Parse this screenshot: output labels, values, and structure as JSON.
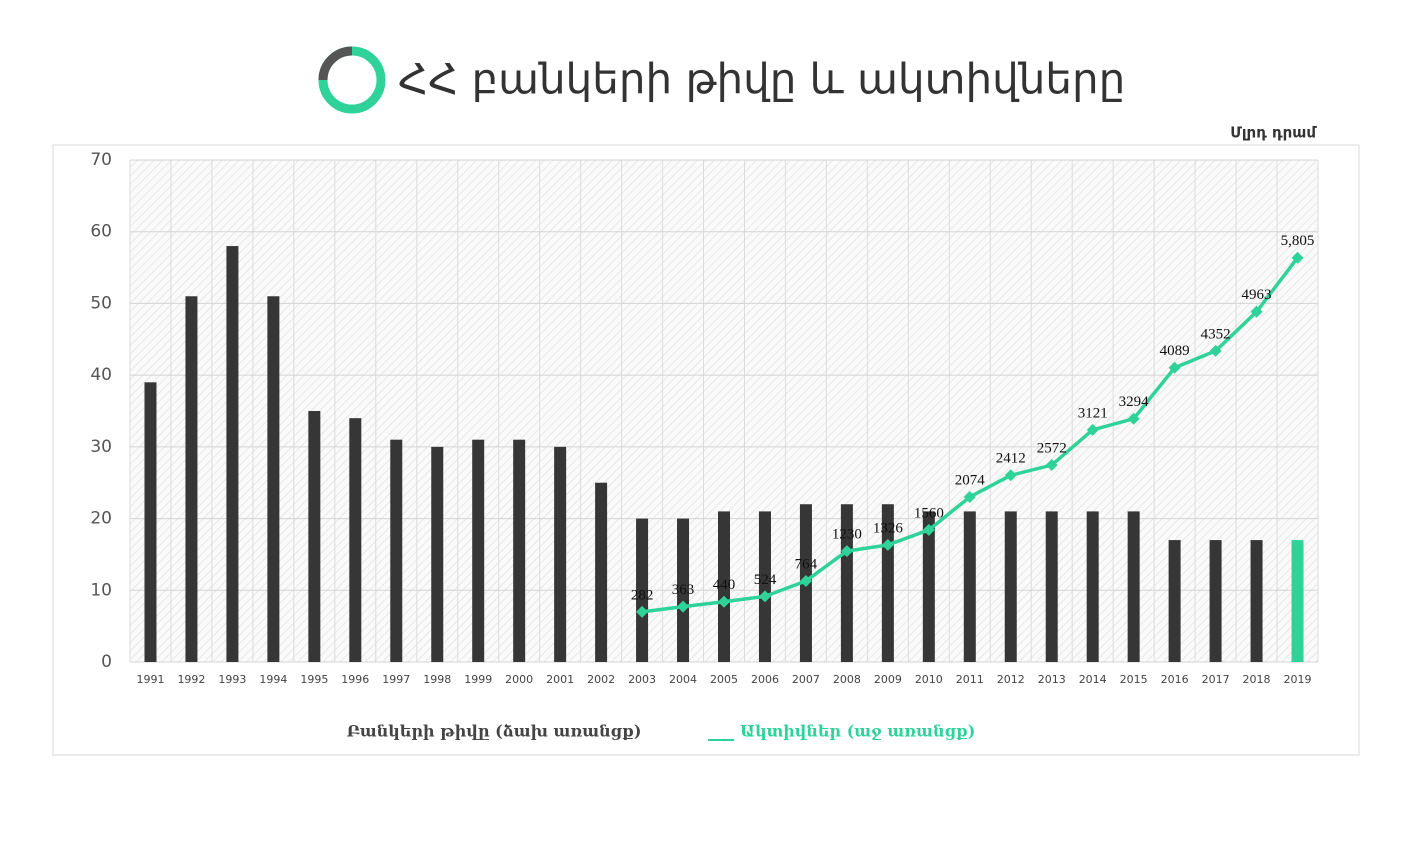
{
  "chart_data": {
    "type": "bar_line",
    "title": "ՀՀ բանկերի թիվը և ակտիվները",
    "y2_label": "Մլրդ դրամ",
    "categories": [
      "1991",
      "1992",
      "1993",
      "1994",
      "1995",
      "1996",
      "1997",
      "1998",
      "1999",
      "2000",
      "2001",
      "2002",
      "2003",
      "2004",
      "2005",
      "2006",
      "2007",
      "2008",
      "2009",
      "2010",
      "2011",
      "2012",
      "2013",
      "2014",
      "2015",
      "2016",
      "2017",
      "2018",
      "2019"
    ],
    "series": [
      {
        "name": "Բանկերի թիվը (ձախ առանցք)",
        "type": "bar",
        "color": "#363636",
        "colors": [
          "#363636",
          "#363636",
          "#363636",
          "#363636",
          "#363636",
          "#363636",
          "#363636",
          "#363636",
          "#363636",
          "#363636",
          "#363636",
          "#363636",
          "#363636",
          "#363636",
          "#363636",
          "#363636",
          "#363636",
          "#363636",
          "#363636",
          "#363636",
          "#363636",
          "#363636",
          "#363636",
          "#363636",
          "#363636",
          "#363636",
          "#363636",
          "#363636",
          "#2fd39a"
        ],
        "values": [
          39,
          51,
          58,
          51,
          35,
          34,
          31,
          30,
          31,
          31,
          30,
          25,
          20,
          20,
          21,
          21,
          22,
          22,
          22,
          21,
          21,
          21,
          21,
          21,
          21,
          17,
          17,
          17,
          17
        ]
      },
      {
        "name": "Ակտիվներ (աջ առանցք)",
        "type": "line",
        "axis": "y2",
        "color": "#2fd39a",
        "values": [
          null,
          null,
          null,
          null,
          null,
          null,
          null,
          null,
          null,
          null,
          null,
          null,
          282,
          363,
          440,
          524,
          764,
          1230,
          1326,
          1560,
          2074,
          2412,
          2572,
          3121,
          3294,
          4089,
          4352,
          4963,
          5805
        ],
        "value_labels": [
          null,
          null,
          null,
          null,
          null,
          null,
          null,
          null,
          null,
          null,
          null,
          null,
          null,
          null,
          null,
          null,
          null,
          null,
          null,
          null,
          null,
          null,
          null,
          null,
          null,
          null,
          null,
          null,
          "5,805"
        ]
      }
    ],
    "ylim": [
      0,
      70
    ],
    "yticks": [
      0,
      10,
      20,
      30,
      40,
      50,
      60,
      70
    ],
    "y2lim": [
      -500,
      7330
    ],
    "grid": true
  }
}
